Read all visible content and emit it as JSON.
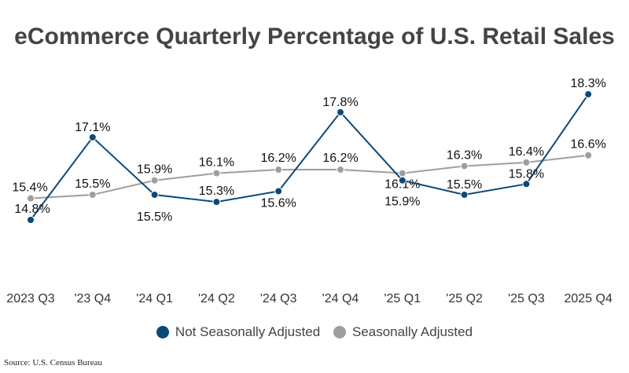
{
  "chart_data": {
    "type": "line",
    "title": "eCommerce Quarterly Percentage of U.S. Retail Sales",
    "categories": [
      "2023 Q3",
      "'23 Q4",
      "'24 Q1",
      "'24 Q2",
      "'24 Q3",
      "'24 Q4",
      "'25 Q1",
      "'25 Q2",
      "'25 Q3",
      "2025 Q4"
    ],
    "series": [
      {
        "name": "Not Seasonally Adjusted",
        "color": "#0b4a78",
        "values": [
          14.8,
          17.1,
          15.5,
          15.3,
          15.6,
          17.8,
          15.9,
          15.5,
          15.8,
          18.3
        ]
      },
      {
        "name": "Seasonally Adjusted",
        "color": "#9e9e9e",
        "values": [
          15.4,
          15.5,
          15.9,
          16.1,
          16.2,
          16.2,
          16.1,
          16.3,
          16.4,
          16.6
        ]
      }
    ],
    "value_suffix": "%",
    "grid": false,
    "legend": "bottom",
    "source": "Source: U.S. Census Bureau"
  }
}
